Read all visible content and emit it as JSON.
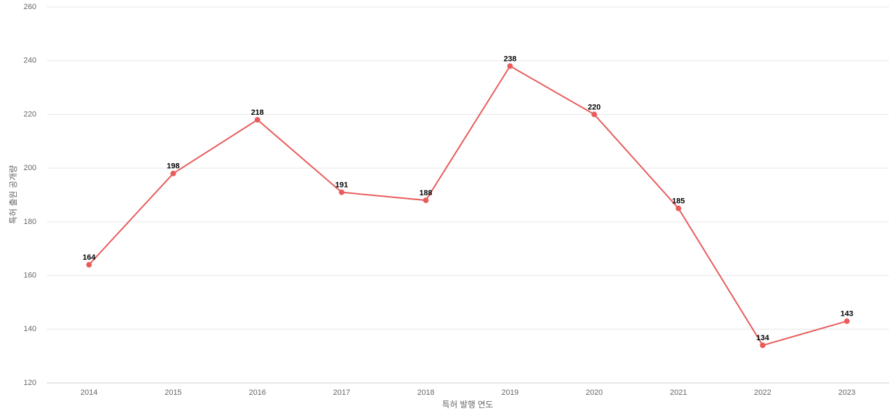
{
  "chart_data": {
    "type": "line",
    "x_label": "특허 발행 연도",
    "y_label": "특허 출원 공개량",
    "categories": [
      "2014",
      "2015",
      "2016",
      "2017",
      "2018",
      "2019",
      "2020",
      "2021",
      "2022",
      "2023"
    ],
    "series": [
      {
        "name": "특허 출원 공개량",
        "color": "#e85c5c",
        "values": [
          164,
          198,
          218,
          191,
          188,
          238,
          220,
          185,
          134,
          143
        ]
      }
    ],
    "ylim": [
      120,
      260
    ],
    "yticks": [
      120,
      140,
      160,
      180,
      200,
      220,
      240,
      260
    ],
    "grid": true
  }
}
